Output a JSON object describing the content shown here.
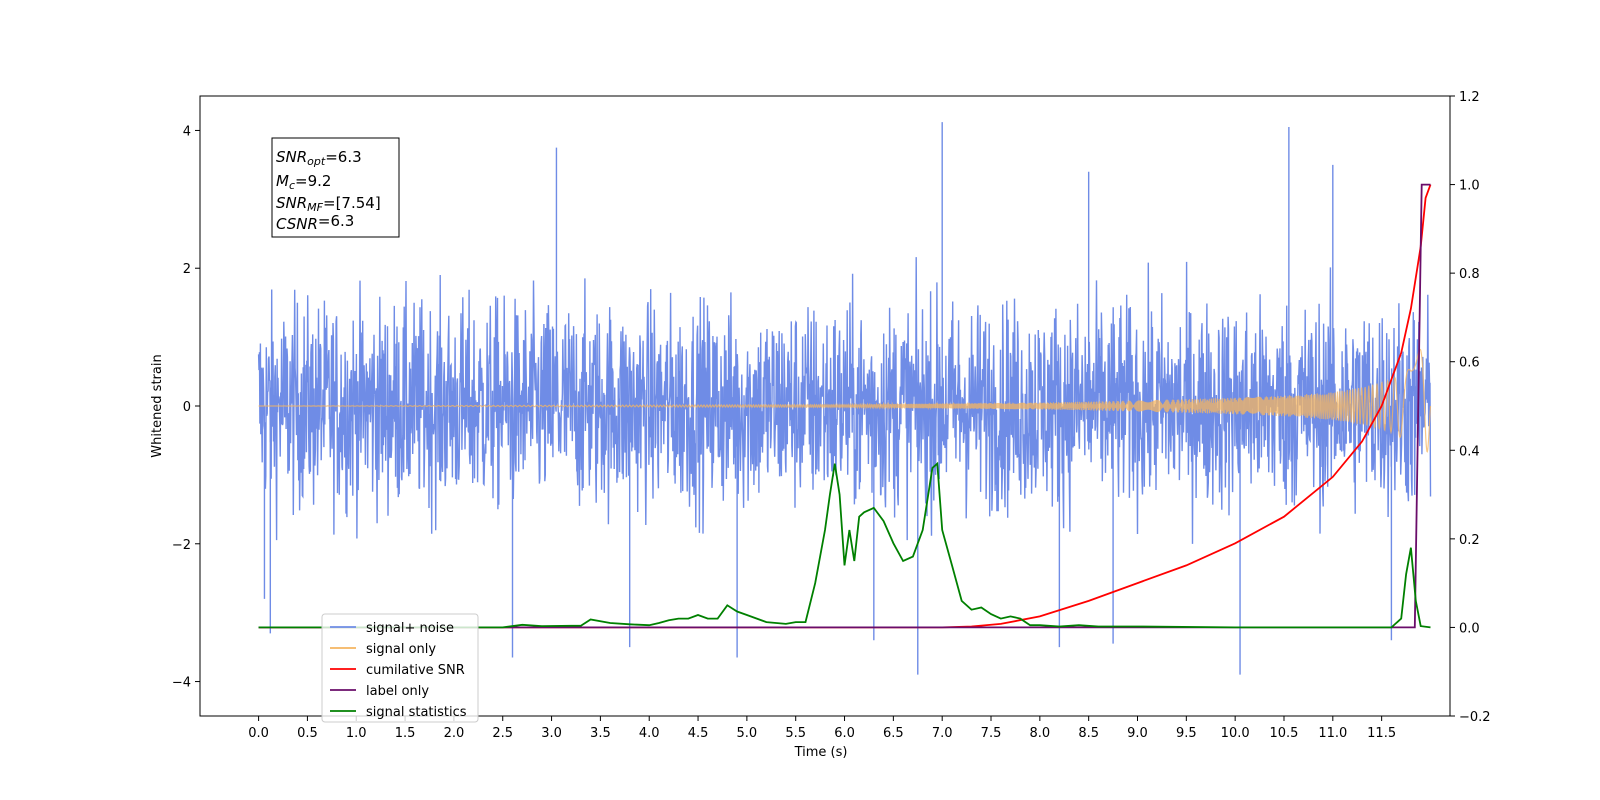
{
  "chart_data": {
    "type": "line",
    "xlabel": "Time (s)",
    "ylabel": "Whitened strain",
    "xlim": [
      -0.6,
      12.2
    ],
    "ylim_left": [
      -4.5,
      4.5
    ],
    "ylim_right": [
      -0.2,
      1.2
    ],
    "x_ticks": [
      "0.0",
      "0.5",
      "1.0",
      "1.5",
      "2.0",
      "2.5",
      "3.0",
      "3.5",
      "4.0",
      "4.5",
      "5.0",
      "5.5",
      "6.0",
      "6.5",
      "7.0",
      "7.5",
      "8.0",
      "8.5",
      "9.0",
      "9.5",
      "10.0",
      "10.5",
      "11.0",
      "11.5"
    ],
    "y_ticks_left": [
      "−4",
      "−2",
      "0",
      "2",
      "4"
    ],
    "y_ticks_right": [
      "−0.2",
      "0.0",
      "0.2",
      "0.4",
      "0.6",
      "0.8",
      "1.0",
      "1.2"
    ],
    "grid": false,
    "legend_position": "lower-left",
    "annotation": {
      "lines": [
        {
          "label": "SNR",
          "sub": "opt",
          "value": "=6.3"
        },
        {
          "label": "M",
          "sub": "c",
          "value": "=9.2"
        },
        {
          "label": "SNR",
          "sub": "MF",
          "value": "=[7.54]"
        },
        {
          "label": "CSNR",
          "sub": "",
          "value": "=6.3"
        }
      ]
    },
    "series": [
      {
        "name": "signal+ noise",
        "axis": "left",
        "color": "#6f8ce6",
        "description_values": {
          "x_range": [
            0.0,
            12.0
          ],
          "typical_range": [
            -2.0,
            2.5
          ],
          "peaks": [
            [
              0.06,
              -2.8
            ],
            [
              0.12,
              -3.3
            ],
            [
              2.6,
              -3.65
            ],
            [
              3.05,
              3.75
            ],
            [
              3.8,
              -3.5
            ],
            [
              4.9,
              -3.65
            ],
            [
              6.3,
              -3.4
            ],
            [
              6.75,
              -3.9
            ],
            [
              7.0,
              4.12
            ],
            [
              8.2,
              -3.5
            ],
            [
              8.5,
              3.4
            ],
            [
              8.75,
              -3.45
            ],
            [
              10.05,
              -3.9
            ],
            [
              10.55,
              4.05
            ],
            [
              11.0,
              3.5
            ],
            [
              11.6,
              -3.4
            ]
          ]
        }
      },
      {
        "name": "signal only",
        "axis": "left",
        "color": "#f5b560",
        "envelope": [
          [
            0.0,
            0.0
          ],
          [
            6.0,
            0.02
          ],
          [
            8.0,
            0.05
          ],
          [
            9.0,
            0.08
          ],
          [
            10.0,
            0.12
          ],
          [
            10.5,
            0.15
          ],
          [
            11.0,
            0.2
          ],
          [
            11.3,
            0.27
          ],
          [
            11.6,
            0.38
          ],
          [
            11.8,
            0.55
          ],
          [
            11.9,
            0.85
          ],
          [
            11.95,
            0.9
          ],
          [
            12.0,
            0.3
          ]
        ]
      },
      {
        "name": "cumilative SNR",
        "axis": "right",
        "color": "#ff0000",
        "x": [
          0.0,
          7.0,
          7.3,
          7.6,
          8.0,
          8.5,
          9.0,
          9.5,
          10.0,
          10.5,
          11.0,
          11.3,
          11.5,
          11.7,
          11.8,
          11.9,
          11.95,
          12.0
        ],
        "y": [
          0.0,
          0.0,
          0.002,
          0.008,
          0.025,
          0.06,
          0.1,
          0.14,
          0.19,
          0.25,
          0.34,
          0.42,
          0.5,
          0.62,
          0.72,
          0.86,
          0.97,
          1.0
        ]
      },
      {
        "name": "label only",
        "axis": "right",
        "color": "#6a0d6a",
        "x": [
          0.0,
          11.84,
          11.91,
          12.0
        ],
        "y": [
          0.0,
          0.0,
          1.0,
          1.0
        ]
      },
      {
        "name": "signal statistics",
        "axis": "right",
        "color": "#008000",
        "x": [
          0.0,
          2.5,
          2.7,
          2.9,
          3.3,
          3.4,
          3.6,
          3.8,
          4.0,
          4.1,
          4.2,
          4.3,
          4.4,
          4.5,
          4.6,
          4.7,
          4.8,
          4.9,
          5.0,
          5.2,
          5.4,
          5.5,
          5.6,
          5.7,
          5.8,
          5.85,
          5.9,
          5.95,
          6.0,
          6.05,
          6.1,
          6.15,
          6.2,
          6.3,
          6.4,
          6.5,
          6.6,
          6.7,
          6.8,
          6.9,
          6.95,
          7.0,
          7.1,
          7.2,
          7.3,
          7.4,
          7.5,
          7.6,
          7.7,
          7.8,
          7.9,
          8.0,
          8.2,
          8.4,
          8.6,
          9.0,
          10.0,
          11.0,
          11.6,
          11.7,
          11.75,
          11.8,
          11.85,
          11.9,
          12.0
        ],
        "y": [
          0.0,
          0.0,
          0.006,
          0.003,
          0.004,
          0.018,
          0.01,
          0.007,
          0.005,
          0.01,
          0.016,
          0.02,
          0.02,
          0.028,
          0.02,
          0.02,
          0.05,
          0.036,
          0.028,
          0.012,
          0.008,
          0.012,
          0.012,
          0.1,
          0.22,
          0.3,
          0.37,
          0.3,
          0.14,
          0.22,
          0.15,
          0.25,
          0.26,
          0.27,
          0.24,
          0.19,
          0.15,
          0.16,
          0.22,
          0.36,
          0.37,
          0.22,
          0.14,
          0.06,
          0.04,
          0.045,
          0.03,
          0.02,
          0.025,
          0.02,
          0.005,
          0.005,
          0.002,
          0.005,
          0.002,
          0.002,
          0.0,
          0.0,
          0.0,
          0.02,
          0.12,
          0.18,
          0.06,
          0.003,
          0.0
        ]
      }
    ]
  }
}
